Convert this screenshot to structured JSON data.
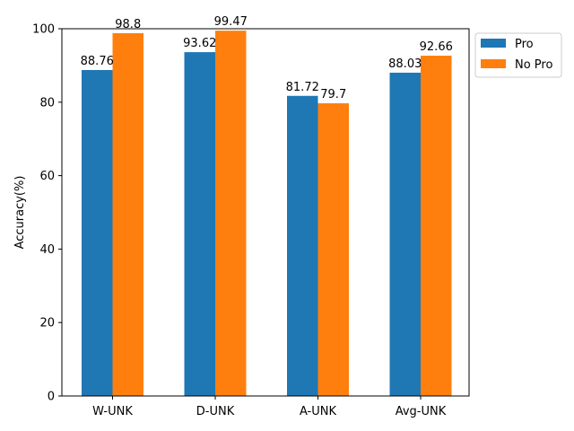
{
  "chart_data": {
    "type": "bar",
    "categories": [
      "W-UNK",
      "D-UNK",
      "A-UNK",
      "Avg-UNK"
    ],
    "series": [
      {
        "name": "Pro",
        "values": [
          88.76,
          93.62,
          81.72,
          88.03
        ],
        "value_labels": [
          "88.76",
          "93.62",
          "81.72",
          "88.03"
        ],
        "color": "#1f77b4"
      },
      {
        "name": "No Pro",
        "values": [
          98.8,
          99.47,
          79.7,
          92.66
        ],
        "value_labels": [
          "98.8",
          "99.47",
          "79.7",
          "92.66"
        ],
        "color": "#ff7f0e"
      }
    ],
    "ylabel": "Accuracy(%)",
    "ylim": [
      0,
      100
    ],
    "yticks": [
      0,
      20,
      40,
      60,
      80,
      100
    ],
    "ytick_labels": [
      "0",
      "20",
      "40",
      "60",
      "80",
      "100"
    ],
    "grid": false,
    "legend_position": "outside-top-right"
  }
}
